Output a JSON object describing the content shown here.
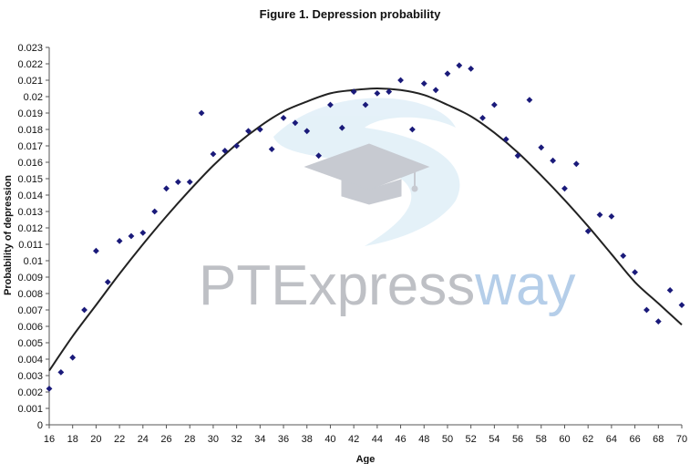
{
  "chart_data": {
    "type": "scatter",
    "title": "Figure 1. Depression probability",
    "xlabel": "Age",
    "ylabel": "Probability of depression",
    "xlim": [
      16,
      70
    ],
    "ylim": [
      0,
      0.023
    ],
    "x_ticks": [
      "16",
      "18",
      "20",
      "22",
      "24",
      "26",
      "28",
      "30",
      "32",
      "34",
      "36",
      "38",
      "40",
      "42",
      "44",
      "46",
      "48",
      "50",
      "52",
      "54",
      "56",
      "58",
      "60",
      "62",
      "64",
      "66",
      "68",
      "70"
    ],
    "y_ticks": [
      "0",
      "0.001",
      "0.002",
      "0.003",
      "0.004",
      "0.005",
      "0.006",
      "0.007",
      "0.008",
      "0.009",
      "0.01",
      "0.011",
      "0.012",
      "0.013",
      "0.014",
      "0.015",
      "0.016",
      "0.017",
      "0.018",
      "0.019",
      "0.02",
      "0.021",
      "0.022",
      "0.023"
    ],
    "grid": false,
    "legend": "none",
    "marker_color": "#1a1a7a",
    "curve_color": "#222222",
    "series": [
      {
        "points": [
          [
            16,
            0.0022
          ],
          [
            17,
            0.0032
          ],
          [
            18,
            0.0041
          ],
          [
            19,
            0.007
          ],
          [
            20,
            0.0106
          ],
          [
            21,
            0.0087
          ],
          [
            22,
            0.0112
          ],
          [
            23,
            0.0115
          ],
          [
            24,
            0.0117
          ],
          [
            25,
            0.013
          ],
          [
            26,
            0.0144
          ],
          [
            27,
            0.0148
          ],
          [
            28,
            0.0148
          ],
          [
            29,
            0.019
          ],
          [
            30,
            0.0165
          ],
          [
            31,
            0.0167
          ],
          [
            32,
            0.017
          ],
          [
            33,
            0.0179
          ],
          [
            34,
            0.018
          ],
          [
            35,
            0.0168
          ],
          [
            36,
            0.0187
          ],
          [
            37,
            0.0184
          ],
          [
            38,
            0.0179
          ],
          [
            39,
            0.0164
          ],
          [
            40,
            0.0195
          ],
          [
            41,
            0.0181
          ],
          [
            42,
            0.0203
          ],
          [
            43,
            0.0195
          ],
          [
            44,
            0.0202
          ],
          [
            45,
            0.0203
          ],
          [
            46,
            0.021
          ],
          [
            47,
            0.018
          ],
          [
            48,
            0.0208
          ],
          [
            49,
            0.0204
          ],
          [
            50,
            0.0214
          ],
          [
            51,
            0.0219
          ],
          [
            52,
            0.0217
          ],
          [
            53,
            0.0187
          ],
          [
            54,
            0.0195
          ],
          [
            55,
            0.0174
          ],
          [
            56,
            0.0164
          ],
          [
            57,
            0.0198
          ],
          [
            58,
            0.0169
          ],
          [
            59,
            0.0161
          ],
          [
            60,
            0.0144
          ],
          [
            61,
            0.0159
          ],
          [
            62,
            0.0118
          ],
          [
            63,
            0.0128
          ],
          [
            64,
            0.0127
          ],
          [
            65,
            0.0103
          ],
          [
            66,
            0.0093
          ],
          [
            67,
            0.007
          ],
          [
            68,
            0.0063
          ],
          [
            69,
            0.0082
          ],
          [
            70,
            0.0073
          ]
        ]
      }
    ],
    "trendline": {
      "type": "polynomial",
      "x": [
        16,
        18,
        20,
        22,
        24,
        26,
        28,
        30,
        32,
        34,
        36,
        38,
        40,
        42,
        44,
        46,
        48,
        50,
        52,
        54,
        56,
        58,
        60,
        62,
        64,
        66,
        68,
        70
      ],
      "y": [
        0.0033,
        0.0054,
        0.0073,
        0.0092,
        0.011,
        0.0127,
        0.0143,
        0.0158,
        0.0171,
        0.0182,
        0.0191,
        0.0197,
        0.0202,
        0.0204,
        0.0205,
        0.0204,
        0.0201,
        0.0195,
        0.0188,
        0.0178,
        0.0166,
        0.0152,
        0.0137,
        0.0121,
        0.0104,
        0.0087,
        0.0074,
        0.0061
      ]
    }
  },
  "watermark": {
    "text_a": "PTExpress",
    "text_b": "way",
    "color_a": "#8a8d96",
    "color_b": "#79a7d8",
    "swoosh_color": "#cfe6f4",
    "cap_color": "#9aa0ad",
    "icon": "graduation-cap-icon"
  }
}
